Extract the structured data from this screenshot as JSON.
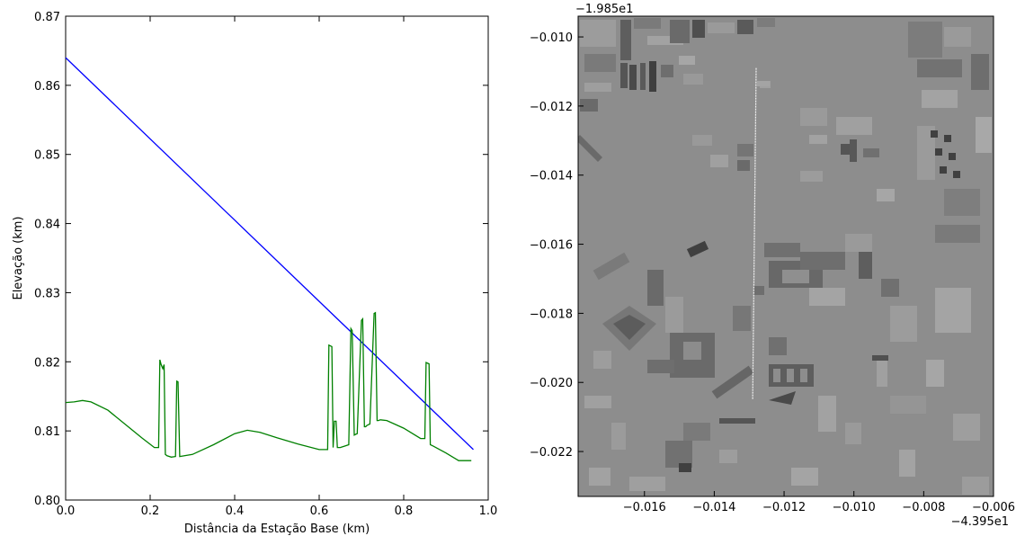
{
  "chart_data": [
    {
      "type": "line",
      "title": "",
      "xlabel": "Distância da Estação Base (km)",
      "ylabel": "Elevação (km)",
      "xlim": [
        0.0,
        1.0
      ],
      "ylim": [
        0.8,
        0.87
      ],
      "x_ticks": [
        "0.0",
        "0.2",
        "0.4",
        "0.6",
        "0.8",
        "1.0"
      ],
      "y_ticks": [
        "0.80",
        "0.81",
        "0.82",
        "0.83",
        "0.84",
        "0.85",
        "0.86",
        "0.87"
      ],
      "grid": false,
      "series": [
        {
          "color": "#0000ff",
          "x": [
            0.0,
            0.965
          ],
          "y": [
            0.864,
            0.8073
          ]
        },
        {
          "color": "#008000",
          "x": [
            0.0,
            0.02,
            0.04,
            0.06,
            0.1,
            0.15,
            0.18,
            0.21,
            0.22,
            0.223,
            0.226,
            0.23,
            0.233,
            0.236,
            0.24,
            0.25,
            0.26,
            0.263,
            0.266,
            0.27,
            0.3,
            0.35,
            0.4,
            0.43,
            0.46,
            0.5,
            0.55,
            0.6,
            0.62,
            0.623,
            0.63,
            0.633,
            0.636,
            0.64,
            0.643,
            0.65,
            0.67,
            0.675,
            0.678,
            0.683,
            0.686,
            0.69,
            0.7,
            0.703,
            0.707,
            0.71,
            0.713,
            0.72,
            0.73,
            0.733,
            0.737,
            0.74,
            0.745,
            0.76,
            0.8,
            0.84,
            0.85,
            0.853,
            0.86,
            0.863,
            0.87,
            0.9,
            0.93,
            0.96
          ],
          "y": [
            0.8141,
            0.8142,
            0.8144,
            0.8142,
            0.813,
            0.8105,
            0.809,
            0.8076,
            0.8076,
            0.8203,
            0.8196,
            0.819,
            0.8196,
            0.8066,
            0.8064,
            0.8062,
            0.8063,
            0.8172,
            0.8171,
            0.8063,
            0.8066,
            0.808,
            0.8096,
            0.8101,
            0.8098,
            0.809,
            0.8081,
            0.8073,
            0.8073,
            0.8224,
            0.8222,
            0.8076,
            0.8114,
            0.8114,
            0.8076,
            0.8076,
            0.808,
            0.8248,
            0.8245,
            0.8094,
            0.8095,
            0.8096,
            0.826,
            0.8262,
            0.8106,
            0.8106,
            0.8108,
            0.811,
            0.827,
            0.8271,
            0.8115,
            0.8115,
            0.8116,
            0.8115,
            0.8104,
            0.8089,
            0.8089,
            0.8199,
            0.8197,
            0.808,
            0.8078,
            0.8068,
            0.8057,
            0.8057
          ]
        }
      ]
    },
    {
      "type": "heatmap",
      "title": "",
      "xlabel": "",
      "ylabel": "",
      "x_ticks": [
        "-0.016",
        "-0.014",
        "-0.012",
        "-0.010",
        "-0.008",
        "-0.006"
      ],
      "x_tick_values": [
        -0.016,
        -0.014,
        -0.012,
        -0.01,
        -0.008,
        -0.006
      ],
      "y_ticks": [
        "-0.010",
        "-0.012",
        "-0.014",
        "-0.016",
        "-0.018",
        "-0.020",
        "-0.022"
      ],
      "y_tick_values": [
        -0.01,
        -0.012,
        -0.014,
        -0.016,
        -0.018,
        -0.02,
        -0.022
      ],
      "x_offset": "−4.395e1",
      "y_offset": "−1.985e1",
      "xlim": [
        -0.0179,
        -0.006
      ],
      "ylim": [
        -0.0233,
        -0.0094
      ],
      "path": {
        "x": [
          -0.0128,
          -0.0129
        ],
        "y": [
          -0.0109,
          -0.0205
        ]
      }
    }
  ]
}
